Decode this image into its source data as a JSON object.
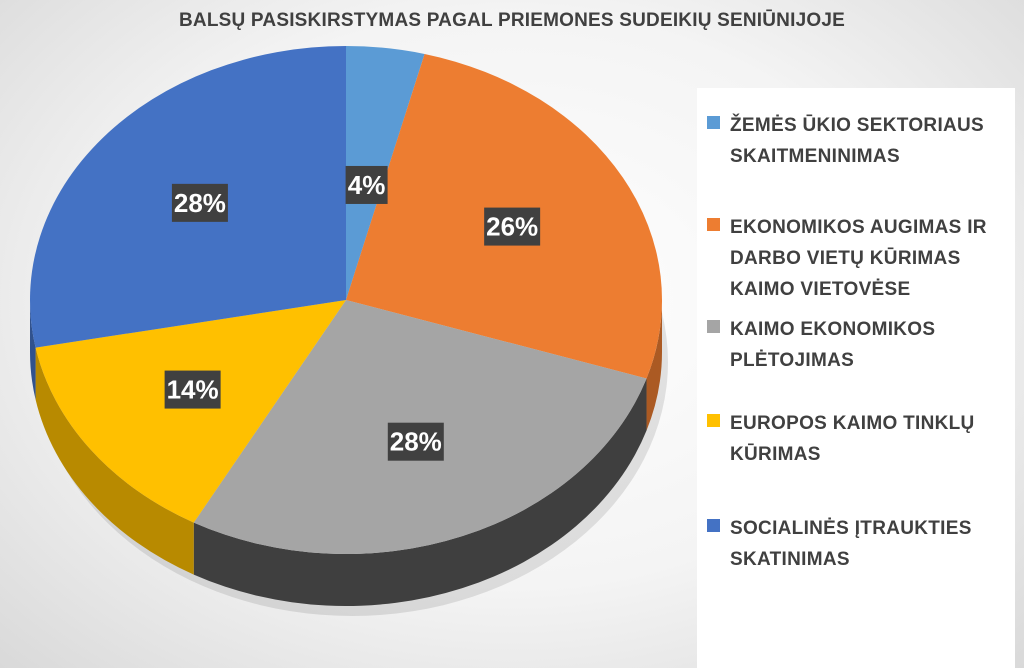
{
  "chart_data": {
    "type": "pie",
    "title": "BALSŲ PASISKIRSTYMAS PAGAL PRIEMONES SUDEIKIŲ SENIŪNIJOJE",
    "categories": [
      "ŽEMĖS ŪKIO SEKTORIAUS SKAITMENINIMAS",
      "EKONOMIKOS AUGIMAS IR DARBO VIETŲ KŪRIMAS KAIMO VIETOVĖSE",
      "KAIMO EKONOMIKOS PLĖTOJIMAS",
      "EUROPOS KAIMO TINKLŲ KŪRIMAS",
      "SOCIALINĖS ĮTRAUKTIES SKATINIMAS"
    ],
    "values": [
      4,
      26,
      28,
      14,
      28
    ],
    "data_labels": [
      "4%",
      "26%",
      "28%",
      "14%",
      "28%"
    ],
    "colors": [
      "#5b9bd5",
      "#ed7d31",
      "#a5a5a5",
      "#ffc000",
      "#4472c4"
    ],
    "legend_position": "right",
    "style": "3d"
  },
  "legend": {
    "items": [
      {
        "label": "ŽEMĖS ŪKIO SEKTORIAUS SKAITMENINIMAS",
        "color": "#5b9bd5"
      },
      {
        "label": "EKONOMIKOS AUGIMAS IR DARBO VIETŲ KŪRIMAS KAIMO VIETOVĖSE",
        "color": "#ed7d31"
      },
      {
        "label": "KAIMO EKONOMIKOS PLĖTOJIMAS",
        "color": "#a5a5a5"
      },
      {
        "label": "EUROPOS KAIMO TINKLŲ KŪRIMAS",
        "color": "#ffc000"
      },
      {
        "label": "SOCIALINĖS ĮTRAUKTIES SKATINIMAS",
        "color": "#4472c4"
      }
    ]
  }
}
